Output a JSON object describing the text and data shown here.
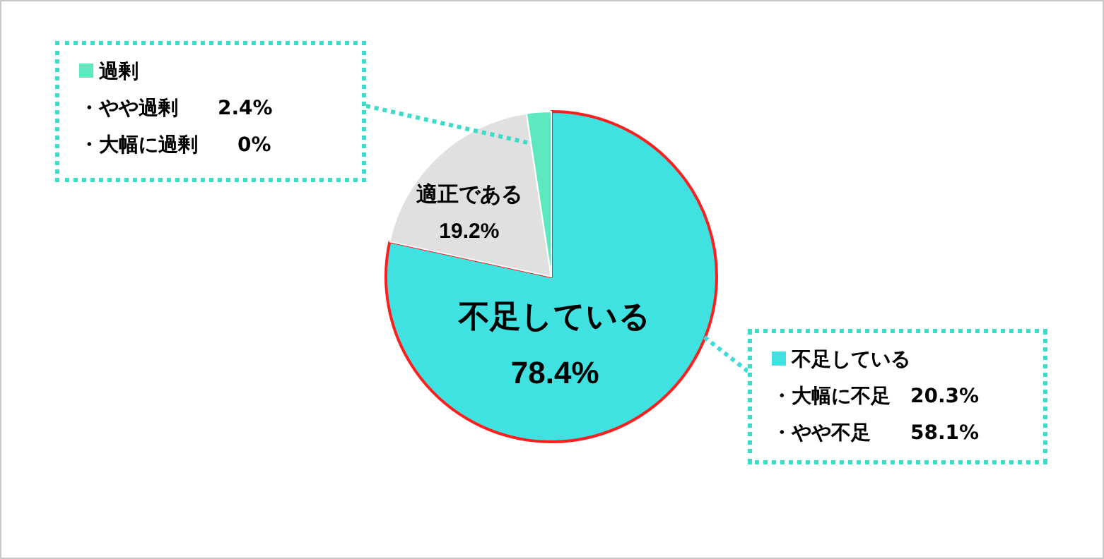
{
  "chart_data": {
    "type": "pie",
    "categories": [
      "不足している",
      "適正である",
      "過剰"
    ],
    "values": [
      78.4,
      19.2,
      2.4
    ],
    "colors": [
      "#3fe1e1",
      "#e0e0e0",
      "#5ee8c0"
    ],
    "value_labels": [
      "78.4%",
      "19.2%",
      null
    ],
    "legend": "top left",
    "annotations": [
      "・やや過剰　　2.4%",
      "・大幅に過剰　　0%",
      "・大幅に不足　20.3%",
      "・やや不足　　58.1%"
    ]
  }
}
